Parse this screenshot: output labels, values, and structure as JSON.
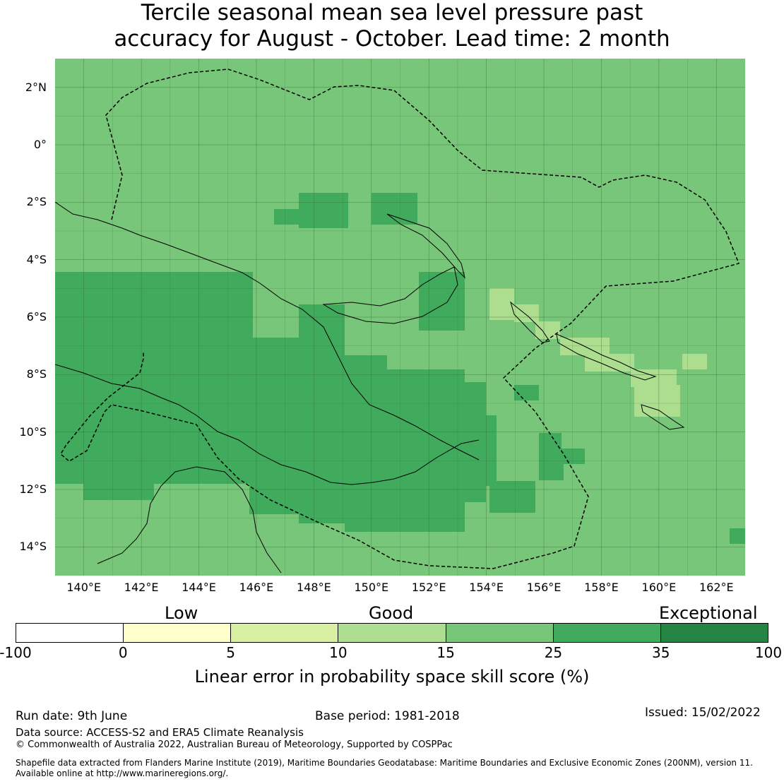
{
  "title": {
    "line1": "Tercile seasonal mean sea level pressure past",
    "line2": "accuracy for August - October. Lead time: 2 month"
  },
  "map": {
    "lat_labels": [
      "2°N",
      "0°",
      "2°S",
      "4°S",
      "6°S",
      "8°S",
      "10°S",
      "12°S",
      "14°S"
    ],
    "lon_labels": [
      "140°E",
      "142°E",
      "144°E",
      "146°E",
      "148°E",
      "150°E",
      "152°E",
      "154°E",
      "156°E",
      "158°E",
      "160°E",
      "162°E"
    ],
    "lon_range": [
      139,
      163
    ],
    "lat_range": [
      -15,
      3
    ],
    "colors": {
      "score_15_25": "#78c679",
      "score_25_35": "#41ab5d",
      "score_10_15": "#addd8e",
      "gridline": "#2f6b2f",
      "boundary": "#000000"
    }
  },
  "legend": {
    "categories": [
      "Low",
      "Good",
      "Exceptional"
    ],
    "bins": [
      "-100",
      "0",
      "5",
      "10",
      "15",
      "25",
      "35",
      "100"
    ],
    "colors": [
      "#ffffff",
      "#ffffcc",
      "#d9f0a3",
      "#addd8e",
      "#78c679",
      "#41ab5d",
      "#238443"
    ],
    "label": "Linear error in probability space skill score (%)"
  },
  "footer": {
    "run_date": "Run date: 9th June",
    "base_period": "Base period: 1981-2018",
    "issued": "Issued: 15/02/2022",
    "data_source": "Data source: ACCESS-S2 and ERA5 Climate Reanalysis",
    "copyright": "© Commonwealth of Australia 2022, Australian Bureau of Meteorology, Supported by COSPPac",
    "shapefile_line1": "Shapefile data extracted from Flanders Marine Institute (2019), Maritime Boundaries Geodatabase: Maritime Boundaries and Exclusive Economic Zones (200NM), version 11.",
    "shapefile_line2": "Available online at http://www.marineregions.org/."
  }
}
